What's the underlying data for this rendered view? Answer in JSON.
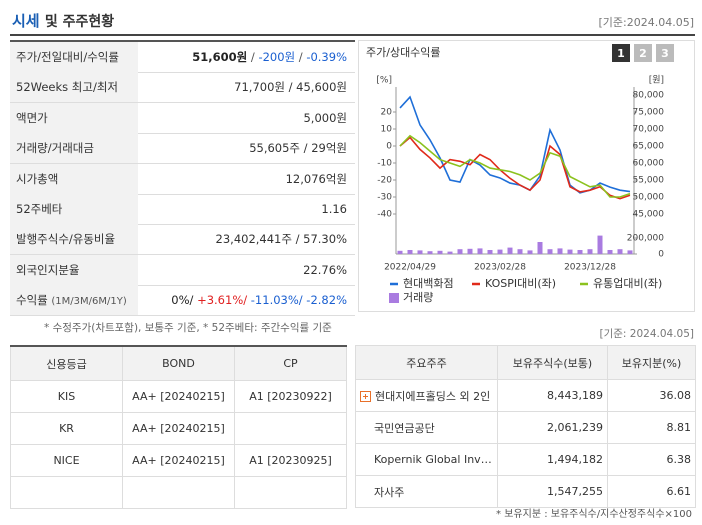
{
  "header": {
    "title_main": "시세",
    "title_rest": "및 주주현황",
    "date": "[기준:2024.04.05]"
  },
  "market_table": {
    "rows": [
      {
        "label": "주가/전일대비/수익률",
        "parts": [
          {
            "text": "51,600원",
            "color": "#222",
            "bold": true
          },
          {
            "text": " / ",
            "color": "#555"
          },
          {
            "text": "-200원",
            "color": "#1a5fd0"
          },
          {
            "text": " / ",
            "color": "#555"
          },
          {
            "text": "-0.39%",
            "color": "#1a5fd0"
          }
        ]
      },
      {
        "label": "52Weeks 최고/최저",
        "parts": [
          {
            "text": "71,700원 / 45,600원",
            "color": "#333"
          }
        ]
      },
      {
        "label": "액면가",
        "parts": [
          {
            "text": "5,000원",
            "color": "#333"
          }
        ]
      },
      {
        "label": "거래량/거래대금",
        "parts": [
          {
            "text": "55,605주 / 29억원",
            "color": "#333"
          }
        ]
      },
      {
        "label": "시가총액",
        "parts": [
          {
            "text": "12,076억원",
            "color": "#333"
          }
        ]
      },
      {
        "label": "52주베타",
        "parts": [
          {
            "text": "1.16",
            "color": "#333"
          }
        ]
      },
      {
        "label": "발행주식수/유동비율",
        "parts": [
          {
            "text": "23,402,441주 / 57.30%",
            "color": "#333"
          }
        ]
      },
      {
        "label": "외국인지분율",
        "parts": [
          {
            "text": "22.76%",
            "color": "#333"
          }
        ]
      },
      {
        "label": "수익률",
        "sublabel": "(1M/3M/6M/1Y)",
        "parts": [
          {
            "text": "0%/",
            "color": "#222"
          },
          {
            "text": " +3.61%/",
            "color": "#e02020"
          },
          {
            "text": " -11.03%/",
            "color": "#1a5fd0"
          },
          {
            "text": " -2.82%",
            "color": "#1a5fd0"
          }
        ]
      }
    ],
    "note": "* 수정주가(차트포함), 보통주 기준, * 52주베타: 주간수익률 기준"
  },
  "chart_data": {
    "type": "line",
    "title": "주가/상대수익률",
    "buttons": [
      "1",
      "2",
      "3"
    ],
    "ylabel": "[%]",
    "y2label": "[원]",
    "categories": [
      null,
      "2022/04/29",
      null,
      null,
      null,
      null,
      null,
      null,
      null,
      null,
      "2023/02/28",
      null,
      null,
      null,
      null,
      null,
      null,
      null,
      null,
      "2023/12/28",
      null,
      null,
      null,
      null
    ],
    "ylim": [
      -40,
      30
    ],
    "yticks": [
      20,
      10,
      0,
      -10,
      -20,
      -30,
      -40
    ],
    "y2lim": [
      45000,
      80000
    ],
    "y2ticks": [
      {
        "value": 80000,
        "label": "80,000"
      },
      {
        "value": 75000,
        "label": "75,000"
      },
      {
        "value": 70000,
        "label": "70,000"
      },
      {
        "value": 65000,
        "label": "65,000"
      },
      {
        "value": 60000,
        "label": "60,000"
      },
      {
        "value": 55000,
        "label": "55,000"
      },
      {
        "value": 50000,
        "label": "50,000"
      },
      {
        "value": 45000,
        "label": "45,000"
      }
    ],
    "y3lim": [
      0,
      200000
    ],
    "y3ticks": [
      {
        "value": 200000,
        "label": "200,000"
      },
      0
    ],
    "series": [
      {
        "name": "현대백화점",
        "color": "#1f6fd8",
        "axis": "y2",
        "values": [
          76200,
          79400,
          71200,
          66800,
          61500,
          55000,
          54400,
          61000,
          59400,
          56500,
          55600,
          54100,
          53500,
          52000,
          56200,
          69700,
          63800,
          53500,
          51200,
          52000,
          54100,
          52900,
          52000,
          51600
        ]
      },
      {
        "name": "KOSPI대비(좌)",
        "color": "#e02a1a",
        "axis": "y",
        "values": [
          0,
          5,
          -2,
          -7,
          -13,
          -8,
          -9,
          -11,
          -5,
          -8,
          -14,
          -19,
          -23,
          -26,
          -20,
          0,
          -5,
          -24,
          -27,
          -26,
          -24,
          -29,
          -31,
          -29
        ]
      },
      {
        "name": "유통업대비(좌)",
        "color": "#8cc21e",
        "axis": "y",
        "values": [
          0,
          6,
          2,
          -3,
          -8,
          -10,
          -12,
          -8,
          -10,
          -13,
          -14,
          -15,
          -17,
          -20,
          -16,
          -4,
          -6,
          -18,
          -21,
          -24,
          -23,
          -30,
          -30,
          -28
        ]
      },
      {
        "name": "거래량",
        "color": "#a97be0",
        "axis": "y3",
        "type": "bar",
        "values": [
          40000,
          50000,
          45000,
          35000,
          40000,
          30000,
          60000,
          65000,
          70000,
          50000,
          55000,
          80000,
          60000,
          45000,
          150000,
          60000,
          70000,
          55000,
          50000,
          60000,
          230000,
          50000,
          60000,
          45000
        ]
      }
    ]
  },
  "credit_table": {
    "headers": [
      "신용등급",
      "BOND",
      "CP"
    ],
    "rows": [
      {
        "agency": "KIS",
        "bond": "AA+ [20240215]",
        "cp": "A1 [20230922]"
      },
      {
        "agency": "KR",
        "bond": "AA+ [20240215]"
      },
      {
        "agency": "NICE",
        "bond": "AA+ [20240215]",
        "cp": "A1 [20230925]"
      }
    ]
  },
  "holders_table": {
    "date": "[기준: 2024.04.05]",
    "headers": [
      "주요주주",
      "보유주식수(보통)",
      "보유지분(%)"
    ],
    "rows": [
      {
        "name": "현대지에프홀딩스 외 2인",
        "shares": "8,443,189",
        "stake": "36.08",
        "expand": true
      },
      {
        "name": "국민연금공단",
        "shares": "2,061,239",
        "stake": "8.81"
      },
      {
        "name": "Kopernik Global Investors, LLC",
        "shares": "1,494,182",
        "stake": "6.38"
      },
      {
        "name": "자사주",
        "shares": "1,547,255",
        "stake": "6.61"
      }
    ],
    "note": "* 보유지분 : 보유주식수/지수산정주식수×100"
  }
}
